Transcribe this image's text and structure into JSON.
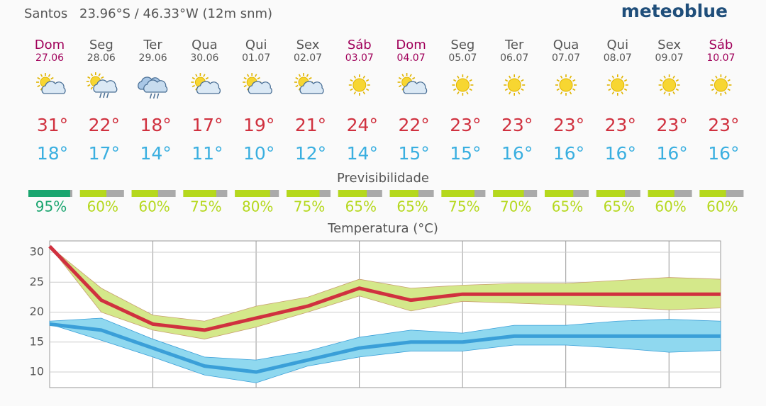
{
  "header": {
    "location": "Santos",
    "coordinates": "23.96°S / 46.33°W (12m snm)",
    "logo": "meteoblue"
  },
  "days": [
    {
      "name": "Dom",
      "date": "27.06",
      "weekend": true,
      "icon": "sun-cloud",
      "max": "31°",
      "min": "18°",
      "predictability": 95,
      "predictability_label": "95%"
    },
    {
      "name": "Seg",
      "date": "28.06",
      "weekend": false,
      "icon": "sun-cloud-rain",
      "max": "22°",
      "min": "17°",
      "predictability": 60,
      "predictability_label": "60%"
    },
    {
      "name": "Ter",
      "date": "29.06",
      "weekend": false,
      "icon": "cloud-rain",
      "max": "18°",
      "min": "14°",
      "predictability": 60,
      "predictability_label": "60%"
    },
    {
      "name": "Qua",
      "date": "30.06",
      "weekend": false,
      "icon": "sun-cloud",
      "max": "17°",
      "min": "11°",
      "predictability": 75,
      "predictability_label": "75%"
    },
    {
      "name": "Qui",
      "date": "01.07",
      "weekend": false,
      "icon": "sun-cloud",
      "max": "19°",
      "min": "10°",
      "predictability": 80,
      "predictability_label": "80%"
    },
    {
      "name": "Sex",
      "date": "02.07",
      "weekend": false,
      "icon": "sun-cloud",
      "max": "21°",
      "min": "12°",
      "predictability": 75,
      "predictability_label": "75%"
    },
    {
      "name": "Sáb",
      "date": "03.07",
      "weekend": true,
      "icon": "sun",
      "max": "24°",
      "min": "14°",
      "predictability": 65,
      "predictability_label": "65%"
    },
    {
      "name": "Dom",
      "date": "04.07",
      "weekend": true,
      "icon": "sun-cloud",
      "max": "22°",
      "min": "15°",
      "predictability": 65,
      "predictability_label": "65%"
    },
    {
      "name": "Seg",
      "date": "05.07",
      "weekend": false,
      "icon": "sun",
      "max": "23°",
      "min": "15°",
      "predictability": 75,
      "predictability_label": "75%"
    },
    {
      "name": "Ter",
      "date": "06.07",
      "weekend": false,
      "icon": "sun",
      "max": "23°",
      "min": "16°",
      "predictability": 70,
      "predictability_label": "70%"
    },
    {
      "name": "Qua",
      "date": "07.07",
      "weekend": false,
      "icon": "sun",
      "max": "23°",
      "min": "16°",
      "predictability": 65,
      "predictability_label": "65%"
    },
    {
      "name": "Qui",
      "date": "08.07",
      "weekend": false,
      "icon": "sun",
      "max": "23°",
      "min": "16°",
      "predictability": 65,
      "predictability_label": "65%"
    },
    {
      "name": "Sex",
      "date": "09.07",
      "weekend": false,
      "icon": "sun",
      "max": "23°",
      "min": "16°",
      "predictability": 60,
      "predictability_label": "60%"
    },
    {
      "name": "Sáb",
      "date": "10.07",
      "weekend": true,
      "icon": "sun",
      "max": "23°",
      "min": "16°",
      "predictability": 60,
      "predictability_label": "60%"
    }
  ],
  "predictability_title": "Previsibilidade",
  "chart_data": {
    "type": "line",
    "title": "Temperatura (°C)",
    "ylim": [
      7.4,
      31.9
    ],
    "yticks": [
      10,
      15,
      20,
      25,
      30
    ],
    "grid": true,
    "series": [
      {
        "color": "#d0313f",
        "band_color": "#d4e88a",
        "values": [
          31,
          22,
          18,
          17,
          19,
          21,
          24,
          22,
          23,
          23,
          23,
          23,
          23,
          23
        ],
        "band_high": [
          31,
          24,
          19.5,
          18.5,
          21,
          22.5,
          25.5,
          24,
          24.5,
          24.8,
          24.8,
          25.3,
          25.8,
          25.5
        ],
        "band_low": [
          31,
          20,
          17,
          15.5,
          17.5,
          20,
          22.7,
          20.2,
          21.8,
          21.5,
          21.2,
          20.8,
          20.4,
          20.7
        ]
      },
      {
        "color": "#3a9fd8",
        "band_color": "#8fd8ef",
        "values": [
          18,
          17,
          14,
          11,
          10,
          12,
          14,
          15,
          15,
          16,
          16,
          16,
          16,
          16
        ],
        "band_high": [
          18.5,
          19,
          15.5,
          12.5,
          12,
          13.5,
          15.8,
          17,
          16.5,
          17.8,
          17.8,
          18.5,
          18.8,
          18.5
        ],
        "band_low": [
          18,
          15.3,
          12.5,
          9.5,
          8.2,
          11,
          12.5,
          13.5,
          13.5,
          14.5,
          14.5,
          14,
          13.3,
          13.6
        ]
      }
    ]
  }
}
